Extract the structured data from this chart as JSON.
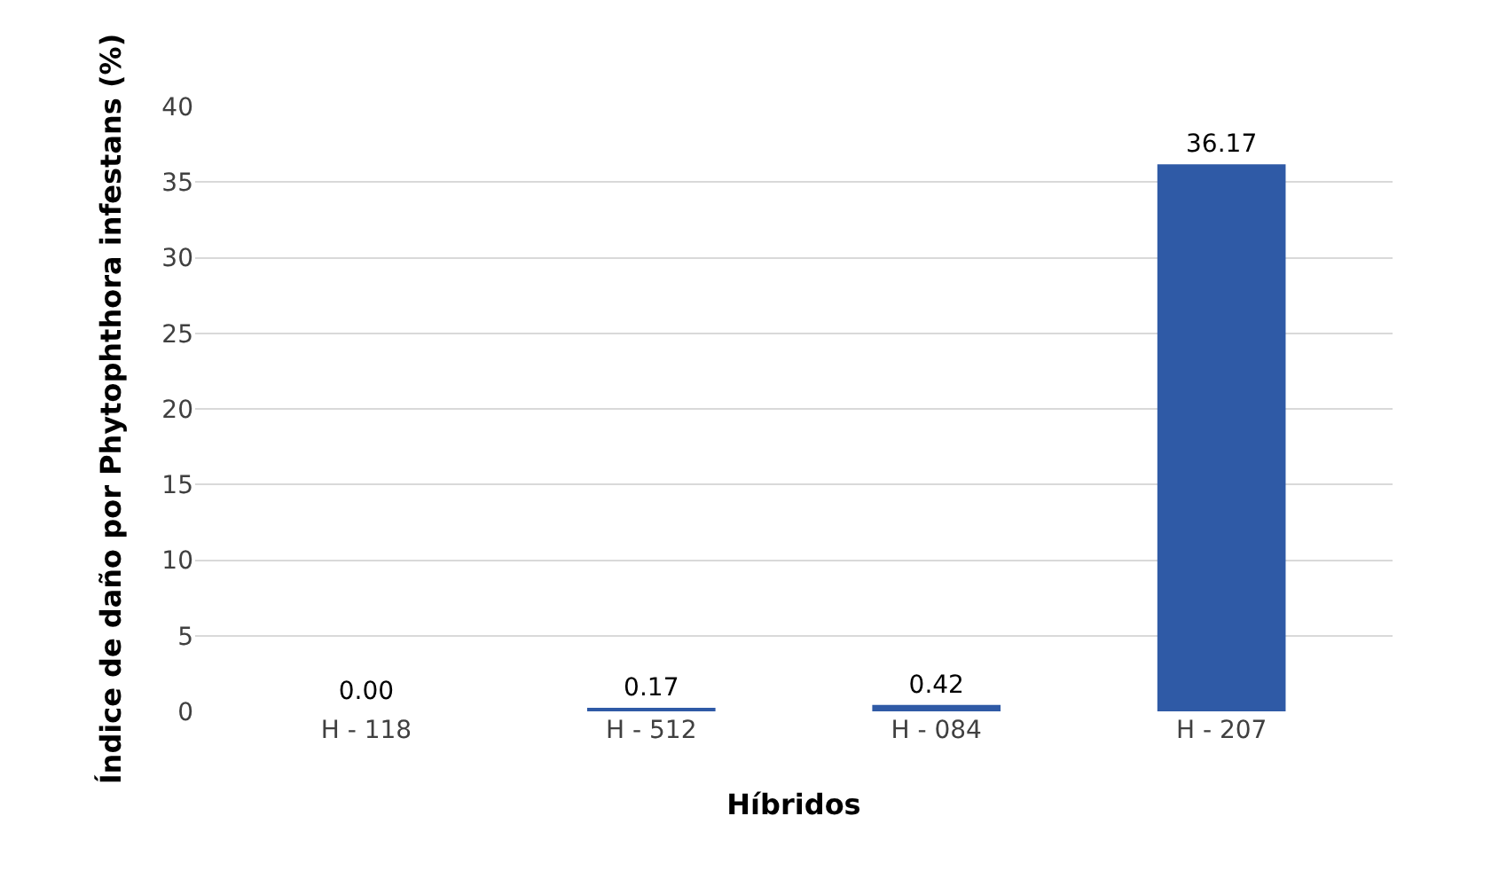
{
  "chart_data": {
    "type": "bar",
    "xlabel": "Híbridos",
    "ylabel": "Índice de daño por Phytophthora infestans (%)",
    "categories": [
      "H - 118",
      "H - 512",
      "H - 084",
      "H - 207"
    ],
    "values": [
      0,
      0.17,
      0.42,
      36.17
    ],
    "value_labels": [
      "0.00",
      "0.17",
      "0.42",
      "36.17"
    ],
    "color": "#2f5aa6",
    "ylim": [
      0,
      40
    ],
    "yticks": [
      0,
      5,
      10,
      15,
      20,
      25,
      30,
      35,
      40
    ],
    "grid": "y",
    "legend": false
  }
}
